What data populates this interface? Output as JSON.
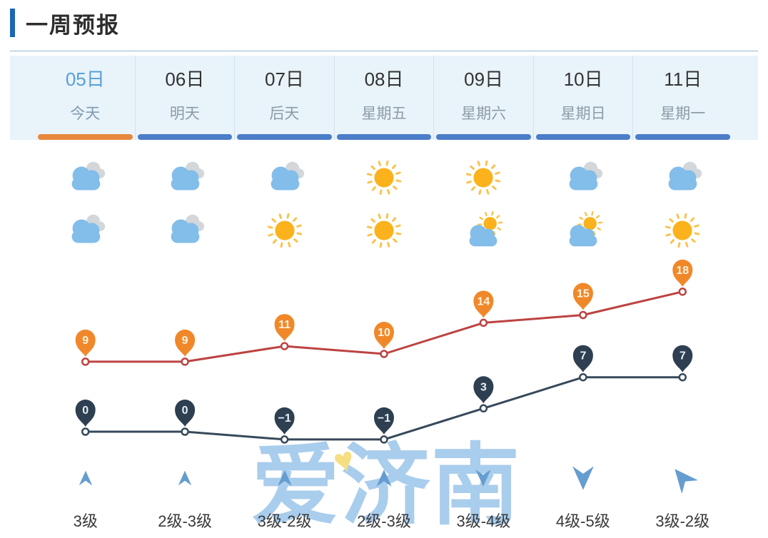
{
  "header": {
    "title": "一周预报"
  },
  "days": [
    {
      "date": "05日",
      "weekday": "今天",
      "active": true,
      "icon_day": "cloudy",
      "icon_night": "cloudy",
      "high": 9,
      "low": 0,
      "wind": {
        "level": "3级",
        "direction_deg": 0,
        "arrow_size": 26
      }
    },
    {
      "date": "06日",
      "weekday": "明天",
      "active": false,
      "icon_day": "cloudy",
      "icon_night": "cloudy",
      "high": 9,
      "low": 0,
      "wind": {
        "level": "2级-3级",
        "direction_deg": 0,
        "arrow_size": 26
      }
    },
    {
      "date": "07日",
      "weekday": "后天",
      "active": false,
      "icon_day": "cloudy",
      "icon_night": "sunny",
      "high": 11,
      "low": -1,
      "wind": {
        "level": "3级-2级",
        "direction_deg": 0,
        "arrow_size": 28
      }
    },
    {
      "date": "08日",
      "weekday": "星期五",
      "active": false,
      "icon_day": "sunny",
      "icon_night": "sunny",
      "high": 10,
      "low": -1,
      "wind": {
        "level": "2级-3级",
        "direction_deg": 0,
        "arrow_size": 30
      }
    },
    {
      "date": "09日",
      "weekday": "星期六",
      "active": false,
      "icon_day": "sunny",
      "icon_night": "partly-cloudy",
      "high": 14,
      "low": 3,
      "wind": {
        "level": "3级-4级",
        "direction_deg": 180,
        "arrow_size": 30
      }
    },
    {
      "date": "10日",
      "weekday": "星期日",
      "active": false,
      "icon_day": "cloudy",
      "icon_night": "partly-cloudy",
      "high": 15,
      "low": 7,
      "wind": {
        "level": "4级-5级",
        "direction_deg": 180,
        "arrow_size": 42
      }
    },
    {
      "date": "11日",
      "weekday": "星期一",
      "active": false,
      "icon_day": "cloudy",
      "icon_night": "sunny",
      "high": 18,
      "low": 7,
      "wind": {
        "level": "3级-2级",
        "direction_deg": -40,
        "arrow_size": 42
      }
    }
  ],
  "chart_data": {
    "type": "line",
    "categories": [
      "05日",
      "06日",
      "07日",
      "08日",
      "09日",
      "10日",
      "11日"
    ],
    "series": [
      {
        "name": "high-temperature",
        "values": [
          9,
          9,
          11,
          10,
          14,
          15,
          18
        ]
      },
      {
        "name": "low-temperature",
        "values": [
          0,
          0,
          -1,
          -1,
          3,
          7,
          7
        ]
      }
    ],
    "data_labels": true,
    "grid": false,
    "legend": "none"
  },
  "watermark": {
    "text": "爱济南"
  },
  "colors": {
    "accent_blue": "#1c67b3",
    "tab_background": "#e9f3fa",
    "active_underline": "#e8883c",
    "tab_underline": "#4b7dc8",
    "active_date_text": "#57a0d8",
    "high_line": "#bc4341",
    "high_pin": "#f0882a",
    "high_pin_text": "#fdf3e0",
    "low_line": "#37495b",
    "low_pin": "#2d3f51",
    "low_pin_text": "#e8eef3",
    "cloud_blue": "#83bde9",
    "cloud_gray": "#d3d7da",
    "sun_body": "#fbb21d",
    "sun_rays": "#f9c24a",
    "wind_arrow": "#659dd0",
    "watermark_text": "#a9cdec",
    "watermark_heart": "#f6de83"
  }
}
